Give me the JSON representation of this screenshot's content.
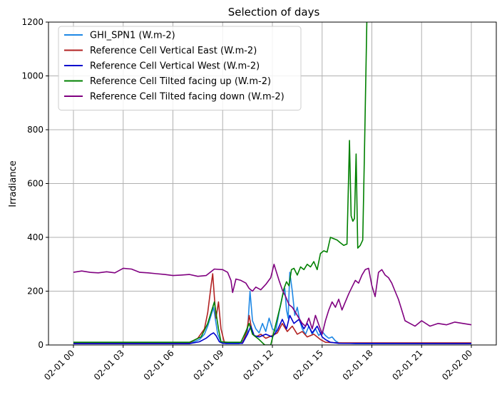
{
  "chart_data": {
    "type": "line",
    "title": "Selection of days",
    "xlabel": "",
    "ylabel": "Irradiance",
    "ylim": [
      0,
      1200
    ],
    "xlim": [
      "2024-02-01 00:00",
      "2024-02-02 00:00"
    ],
    "grid": true,
    "legend_position": "upper-left",
    "x_ticks": [
      "02-01 00",
      "02-01 03",
      "02-01 06",
      "02-01 09",
      "02-01 12",
      "02-01 15",
      "02-01 18",
      "02-01 21",
      "02-02 00"
    ],
    "y_ticks": [
      "0",
      "200",
      "400",
      "600",
      "800",
      "1000",
      "1200"
    ],
    "series": [
      {
        "name": "GHI_SPN1 (W.m-2)",
        "color": "#1e88e5",
        "points": [
          [
            0,
            5
          ],
          [
            7,
            5
          ],
          [
            7.6,
            20
          ],
          [
            7.9,
            40
          ],
          [
            8.1,
            70
          ],
          [
            8.3,
            110
          ],
          [
            8.45,
            140
          ],
          [
            8.55,
            100
          ],
          [
            8.7,
            40
          ],
          [
            8.9,
            10
          ],
          [
            9.2,
            5
          ],
          [
            10,
            5
          ],
          [
            10.3,
            20
          ],
          [
            10.5,
            50
          ],
          [
            10.65,
            200
          ],
          [
            10.8,
            90
          ],
          [
            11,
            60
          ],
          [
            11.2,
            45
          ],
          [
            11.4,
            80
          ],
          [
            11.6,
            50
          ],
          [
            11.8,
            100
          ],
          [
            12,
            60
          ],
          [
            12.2,
            50
          ],
          [
            12.4,
            120
          ],
          [
            12.6,
            180
          ],
          [
            12.75,
            210
          ],
          [
            12.85,
            130
          ],
          [
            12.95,
            100
          ],
          [
            13.05,
            270
          ],
          [
            13.2,
            200
          ],
          [
            13.35,
            110
          ],
          [
            13.5,
            140
          ],
          [
            13.65,
            90
          ],
          [
            13.8,
            60
          ],
          [
            14,
            40
          ],
          [
            14.2,
            70
          ],
          [
            14.4,
            40
          ],
          [
            14.6,
            60
          ],
          [
            14.8,
            35
          ],
          [
            15,
            50
          ],
          [
            15.2,
            35
          ],
          [
            15.4,
            25
          ],
          [
            15.6,
            30
          ],
          [
            15.8,
            15
          ],
          [
            16,
            8
          ],
          [
            17,
            5
          ],
          [
            24,
            5
          ]
        ]
      },
      {
        "name": "Reference Cell Vertical East (W.m-2)",
        "color": "#b22222",
        "points": [
          [
            0,
            8
          ],
          [
            7,
            8
          ],
          [
            7.5,
            25
          ],
          [
            7.9,
            60
          ],
          [
            8.1,
            120
          ],
          [
            8.3,
            220
          ],
          [
            8.4,
            265
          ],
          [
            8.5,
            180
          ],
          [
            8.6,
            100
          ],
          [
            8.75,
            160
          ],
          [
            8.9,
            60
          ],
          [
            9.1,
            10
          ],
          [
            10.2,
            8
          ],
          [
            10.45,
            50
          ],
          [
            10.6,
            110
          ],
          [
            10.8,
            40
          ],
          [
            11,
            30
          ],
          [
            11.3,
            40
          ],
          [
            11.6,
            25
          ],
          [
            12,
            35
          ],
          [
            12.3,
            45
          ],
          [
            12.6,
            80
          ],
          [
            12.9,
            50
          ],
          [
            13.2,
            70
          ],
          [
            13.5,
            40
          ],
          [
            13.8,
            50
          ],
          [
            14.1,
            30
          ],
          [
            14.5,
            40
          ],
          [
            14.9,
            20
          ],
          [
            15.2,
            10
          ],
          [
            16,
            8
          ],
          [
            24,
            8
          ]
        ]
      },
      {
        "name": "Reference Cell Vertical West (W.m-2)",
        "color": "#0000cd",
        "points": [
          [
            0,
            5
          ],
          [
            7,
            5
          ],
          [
            7.6,
            12
          ],
          [
            8,
            25
          ],
          [
            8.3,
            40
          ],
          [
            8.45,
            45
          ],
          [
            8.6,
            35
          ],
          [
            8.8,
            12
          ],
          [
            9,
            6
          ],
          [
            10.2,
            6
          ],
          [
            10.5,
            40
          ],
          [
            10.7,
            70
          ],
          [
            10.9,
            35
          ],
          [
            11.2,
            30
          ],
          [
            11.6,
            40
          ],
          [
            12,
            30
          ],
          [
            12.3,
            55
          ],
          [
            12.6,
            95
          ],
          [
            12.85,
            60
          ],
          [
            13.05,
            110
          ],
          [
            13.3,
            80
          ],
          [
            13.6,
            95
          ],
          [
            13.9,
            60
          ],
          [
            14.1,
            80
          ],
          [
            14.4,
            45
          ],
          [
            14.7,
            70
          ],
          [
            15,
            30
          ],
          [
            15.2,
            20
          ],
          [
            15.5,
            10
          ],
          [
            16,
            6
          ],
          [
            24,
            5
          ]
        ]
      },
      {
        "name": "Reference Cell Tilted facing up (W.m-2)",
        "color": "#008000",
        "points": [
          [
            0,
            10
          ],
          [
            7,
            10
          ],
          [
            7.7,
            30
          ],
          [
            8.1,
            80
          ],
          [
            8.4,
            140
          ],
          [
            8.5,
            160
          ],
          [
            8.6,
            120
          ],
          [
            8.75,
            60
          ],
          [
            8.9,
            12
          ],
          [
            9.3,
            10
          ],
          [
            10.1,
            10
          ],
          [
            10.4,
            50
          ],
          [
            10.6,
            80
          ],
          [
            10.8,
            40
          ],
          [
            11.2,
            20
          ],
          [
            11.45,
            5
          ],
          [
            11.55,
            0
          ],
          [
            11.9,
            0
          ],
          [
            12.1,
            50
          ],
          [
            12.3,
            100
          ],
          [
            12.5,
            150
          ],
          [
            12.7,
            210
          ],
          [
            12.85,
            235
          ],
          [
            13,
            220
          ],
          [
            13.15,
            280
          ],
          [
            13.3,
            285
          ],
          [
            13.5,
            260
          ],
          [
            13.7,
            290
          ],
          [
            13.9,
            280
          ],
          [
            14.1,
            300
          ],
          [
            14.3,
            290
          ],
          [
            14.5,
            310
          ],
          [
            14.7,
            280
          ],
          [
            14.9,
            340
          ],
          [
            15.1,
            350
          ],
          [
            15.3,
            345
          ],
          [
            15.5,
            400
          ],
          [
            15.7,
            395
          ],
          [
            15.9,
            390
          ],
          [
            16.1,
            380
          ],
          [
            16.3,
            370
          ],
          [
            16.5,
            375
          ],
          [
            16.65,
            760
          ],
          [
            16.75,
            480
          ],
          [
            16.85,
            460
          ],
          [
            16.95,
            470
          ],
          [
            17.05,
            710
          ],
          [
            17.15,
            360
          ],
          [
            17.3,
            370
          ],
          [
            17.45,
            390
          ],
          [
            17.55,
            700
          ],
          [
            17.7,
            1210
          ]
        ]
      },
      {
        "name": "Reference Cell Tilted facing down (W.m-2)",
        "color": "#800080",
        "points": [
          [
            0,
            270
          ],
          [
            0.5,
            275
          ],
          [
            1,
            270
          ],
          [
            1.5,
            268
          ],
          [
            2,
            272
          ],
          [
            2.5,
            268
          ],
          [
            3,
            285
          ],
          [
            3.5,
            282
          ],
          [
            4,
            270
          ],
          [
            4.5,
            268
          ],
          [
            5,
            265
          ],
          [
            5.5,
            262
          ],
          [
            6,
            258
          ],
          [
            6.5,
            260
          ],
          [
            7,
            262
          ],
          [
            7.5,
            255
          ],
          [
            8,
            258
          ],
          [
            8.5,
            282
          ],
          [
            9,
            280
          ],
          [
            9.3,
            270
          ],
          [
            9.5,
            240
          ],
          [
            9.6,
            195
          ],
          [
            9.8,
            245
          ],
          [
            10.1,
            240
          ],
          [
            10.4,
            230
          ],
          [
            10.6,
            210
          ],
          [
            10.8,
            200
          ],
          [
            11,
            215
          ],
          [
            11.3,
            205
          ],
          [
            11.6,
            225
          ],
          [
            11.9,
            250
          ],
          [
            12.1,
            300
          ],
          [
            12.2,
            280
          ],
          [
            12.4,
            240
          ],
          [
            12.6,
            205
          ],
          [
            12.8,
            180
          ],
          [
            13,
            150
          ],
          [
            13.2,
            140
          ],
          [
            13.4,
            120
          ],
          [
            13.6,
            100
          ],
          [
            13.8,
            80
          ],
          [
            14,
            70
          ],
          [
            14.2,
            100
          ],
          [
            14.4,
            60
          ],
          [
            14.6,
            110
          ],
          [
            14.8,
            75
          ],
          [
            15,
            40
          ],
          [
            15.2,
            90
          ],
          [
            15.4,
            130
          ],
          [
            15.6,
            160
          ],
          [
            15.8,
            140
          ],
          [
            16,
            170
          ],
          [
            16.2,
            130
          ],
          [
            16.4,
            160
          ],
          [
            16.6,
            190
          ],
          [
            16.8,
            215
          ],
          [
            17,
            240
          ],
          [
            17.2,
            230
          ],
          [
            17.4,
            260
          ],
          [
            17.6,
            280
          ],
          [
            17.8,
            285
          ],
          [
            18,
            220
          ],
          [
            18.2,
            180
          ],
          [
            18.4,
            270
          ],
          [
            18.6,
            280
          ],
          [
            18.8,
            260
          ],
          [
            19,
            250
          ],
          [
            19.2,
            230
          ],
          [
            19.4,
            200
          ],
          [
            19.6,
            170
          ],
          [
            19.8,
            130
          ],
          [
            20,
            90
          ],
          [
            20.3,
            80
          ],
          [
            20.6,
            70
          ],
          [
            21,
            90
          ],
          [
            21.5,
            70
          ],
          [
            22,
            80
          ],
          [
            22.5,
            75
          ],
          [
            23,
            85
          ],
          [
            23.5,
            80
          ],
          [
            24,
            75
          ]
        ]
      }
    ]
  }
}
